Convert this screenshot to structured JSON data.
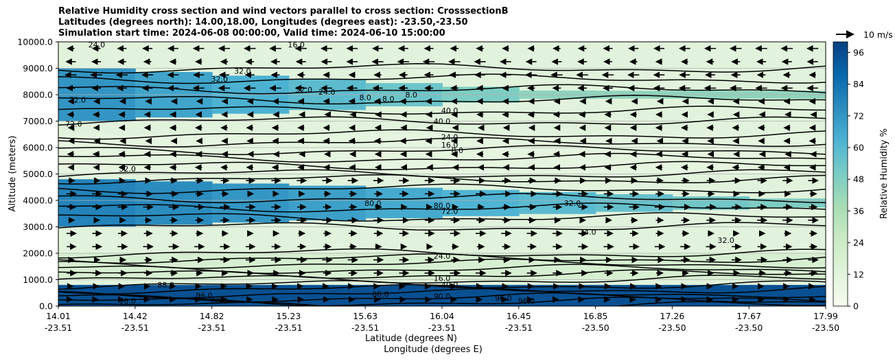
{
  "chart_data": {
    "type": "heatmap",
    "title_lines": [
      "Relative Humidity cross section and wind vectors parallel to cross section: CrosssectionB",
      "Latitudes (degrees north): 14.00,18.00, Longitudes (degrees east): -23.50,-23.50",
      "Simulation start time: 2024-06-08 00:00:00, Valid time: 2024-06-10 15:00:00"
    ],
    "ylabel": "Altitude (meters)",
    "xlabel_lat": "Latitude (degrees N)",
    "xlabel_lon": "Longitude (degrees E)",
    "ylim": [
      0,
      10000
    ],
    "y_ticks": [
      "0.0",
      "1000.0",
      "2000.0",
      "3000.0",
      "4000.0",
      "5000.0",
      "6000.0",
      "7000.0",
      "8000.0",
      "9000.0",
      "10000.0"
    ],
    "x_ticks": [
      {
        "lat": "14.01",
        "lon": "-23.51"
      },
      {
        "lat": "14.42",
        "lon": "-23.51"
      },
      {
        "lat": "14.82",
        "lon": "-23.51"
      },
      {
        "lat": "15.23",
        "lon": "-23.51"
      },
      {
        "lat": "15.63",
        "lon": "-23.51"
      },
      {
        "lat": "16.04",
        "lon": "-23.51"
      },
      {
        "lat": "16.45",
        "lon": "-23.51"
      },
      {
        "lat": "16.85",
        "lon": "-23.50"
      },
      {
        "lat": "17.26",
        "lon": "-23.50"
      },
      {
        "lat": "17.67",
        "lon": "-23.50"
      },
      {
        "lat": "17.99",
        "lon": "-23.50"
      }
    ],
    "grid": "horizontal",
    "colorbar": {
      "label": "Relative Humidity %",
      "ticks": [
        "0",
        "12",
        "24",
        "36",
        "48",
        "60",
        "72",
        "84",
        "96"
      ],
      "range": [
        0,
        100
      ],
      "colormap": [
        "#f7fcf0",
        "#e0f3db",
        "#ccebc5",
        "#a8ddb5",
        "#7bccc4",
        "#4eb3d3",
        "#2b8cbe",
        "#0868ac",
        "#084081"
      ]
    },
    "quiver_key": "10 m/s",
    "layers": [
      {
        "z_min": 0,
        "z_max": 800,
        "rh": 95
      },
      {
        "z_min": 1000,
        "z_max": 2000,
        "rh": 18
      },
      {
        "z_min": 3000,
        "z_max": 4800,
        "rh": 78
      },
      {
        "z_min": 5000,
        "z_max": 6500,
        "rh": 10
      },
      {
        "z_min": 7000,
        "z_max": 9000,
        "rh": 72
      }
    ],
    "contour_labels": [
      {
        "text": "24.0",
        "x": 0.05,
        "z": 9900
      },
      {
        "text": "16.0",
        "x": 0.31,
        "z": 9900
      },
      {
        "text": "72.0",
        "x": 0.025,
        "z": 7800
      },
      {
        "text": "72.0",
        "x": 0.02,
        "z": 6900
      },
      {
        "text": "32.0",
        "x": 0.21,
        "z": 8600
      },
      {
        "text": "32.0",
        "x": 0.24,
        "z": 8900
      },
      {
        "text": "32.0",
        "x": 0.32,
        "z": 8200
      },
      {
        "text": "24.0",
        "x": 0.35,
        "z": 8100
      },
      {
        "text": "8.0",
        "x": 0.4,
        "z": 7900
      },
      {
        "text": "8.0",
        "x": 0.43,
        "z": 7850
      },
      {
        "text": "8.0",
        "x": 0.46,
        "z": 8000
      },
      {
        "text": "40.0",
        "x": 0.51,
        "z": 7400
      },
      {
        "text": "40.0",
        "x": 0.5,
        "z": 7000
      },
      {
        "text": "24.0",
        "x": 0.51,
        "z": 6400
      },
      {
        "text": "16.0",
        "x": 0.51,
        "z": 6100
      },
      {
        "text": "8.0",
        "x": 0.52,
        "z": 5900
      },
      {
        "text": "32.0",
        "x": 0.09,
        "z": 5200
      },
      {
        "text": "80.0",
        "x": 0.5,
        "z": 3800
      },
      {
        "text": "72.0",
        "x": 0.51,
        "z": 3600
      },
      {
        "text": "80.0",
        "x": 0.41,
        "z": 3900
      },
      {
        "text": "32.0",
        "x": 0.67,
        "z": 3900
      },
      {
        "text": "24.0",
        "x": 0.69,
        "z": 2800
      },
      {
        "text": "32.0",
        "x": 0.87,
        "z": 2500
      },
      {
        "text": "24.0",
        "x": 0.5,
        "z": 1900
      },
      {
        "text": "16.0",
        "x": 0.5,
        "z": 1050
      },
      {
        "text": "40.0",
        "x": 0.51,
        "z": 800
      },
      {
        "text": "90.0",
        "x": 0.5,
        "z": 380
      },
      {
        "text": "96.0",
        "x": 0.09,
        "z": 200
      },
      {
        "text": "88.0",
        "x": 0.14,
        "z": 800
      },
      {
        "text": "96.0",
        "x": 0.19,
        "z": 400
      },
      {
        "text": "88.0",
        "x": 0.21,
        "z": 200
      },
      {
        "text": "88.0",
        "x": 0.42,
        "z": 450
      },
      {
        "text": "96.0",
        "x": 0.58,
        "z": 300
      },
      {
        "text": "96.0",
        "x": 0.61,
        "z": 200
      }
    ]
  }
}
